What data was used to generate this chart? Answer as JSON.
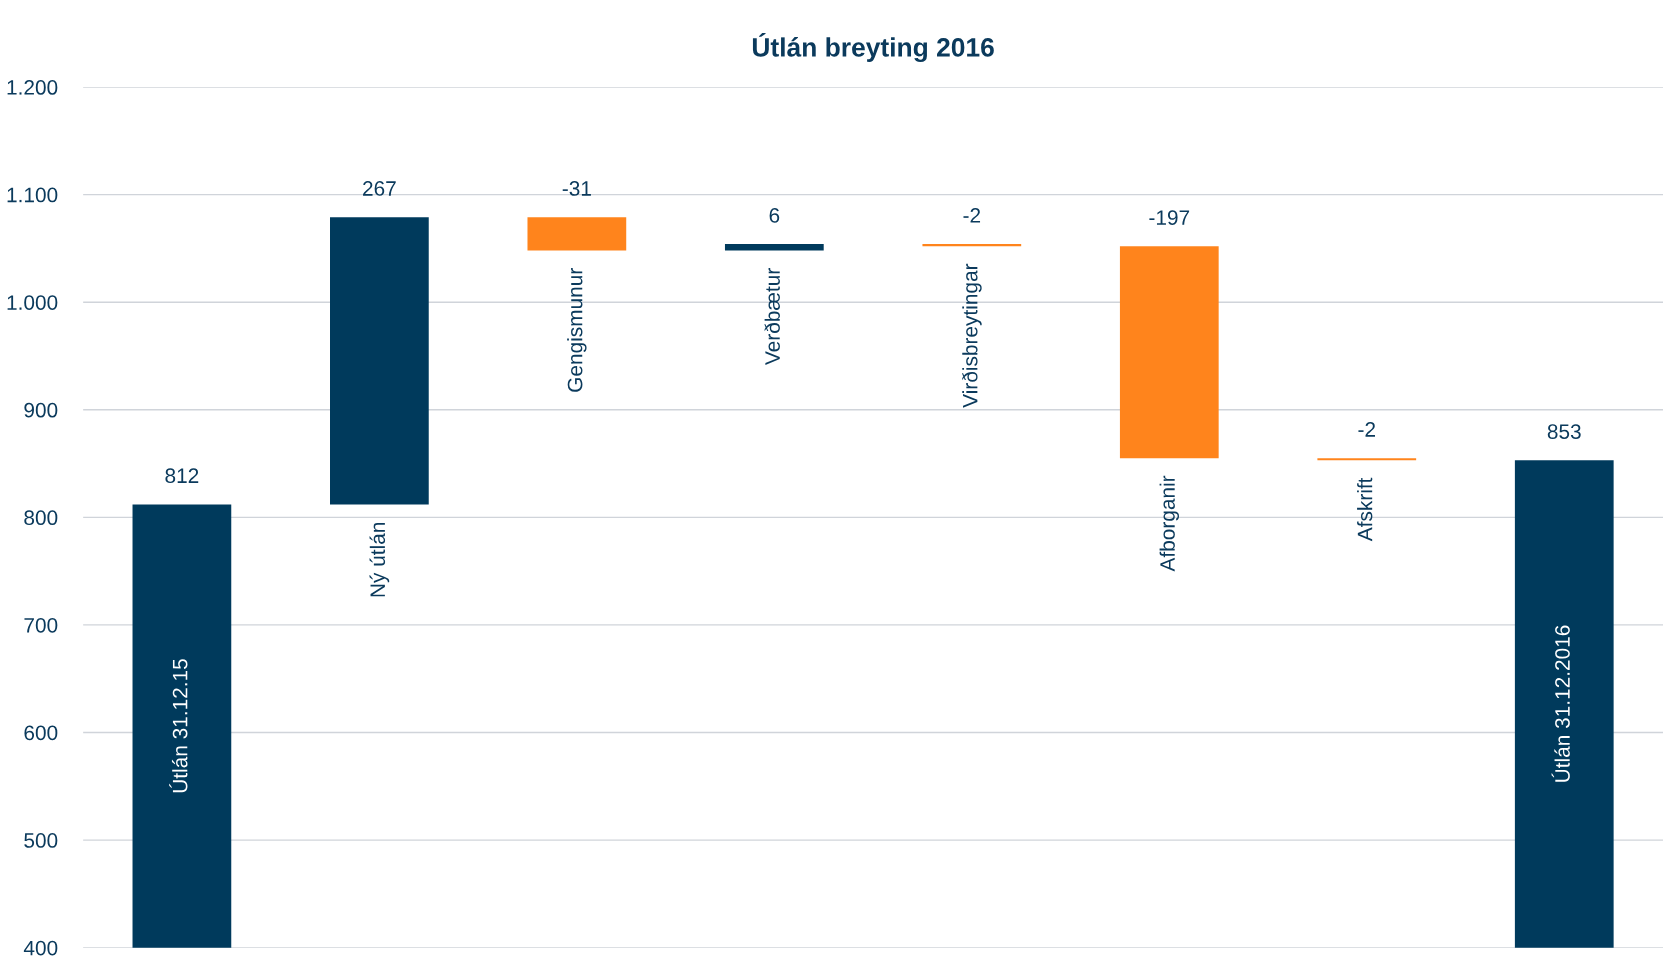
{
  "chart_data": {
    "type": "bar",
    "title": "Útlán breyting 2016",
    "categories": [
      "Útlán 31.12.15",
      "Ný útlán",
      "Gengismunur",
      "Verðbætur",
      "Virðisbreytingar",
      "Afborganir",
      "Afskrift",
      "Útlán 31.12.2016"
    ],
    "values": [
      812,
      267,
      -31,
      6,
      -2,
      -197,
      -2,
      853
    ],
    "base": [
      null,
      812,
      1079,
      1048,
      1054,
      1052,
      855,
      null
    ],
    "colors": [
      "#003a5c",
      "#003a5c",
      "#ff841c",
      "#003a5c",
      "#ff841c",
      "#ff841c",
      "#ff841c",
      "#003a5c"
    ],
    "ylim": [
      400,
      1200
    ],
    "yticks": [
      {
        "value": 400,
        "label": "400"
      },
      {
        "value": 500,
        "label": "500"
      },
      {
        "value": 600,
        "label": "600"
      },
      {
        "value": 700,
        "label": "700"
      },
      {
        "value": 800,
        "label": "800"
      },
      {
        "value": 900,
        "label": "900"
      },
      {
        "value": 1000,
        "label": "1.000"
      },
      {
        "value": 1100,
        "label": "1.100"
      },
      {
        "value": 1200,
        "label": "1.200"
      }
    ],
    "grid": "y",
    "data_labels": true
  }
}
